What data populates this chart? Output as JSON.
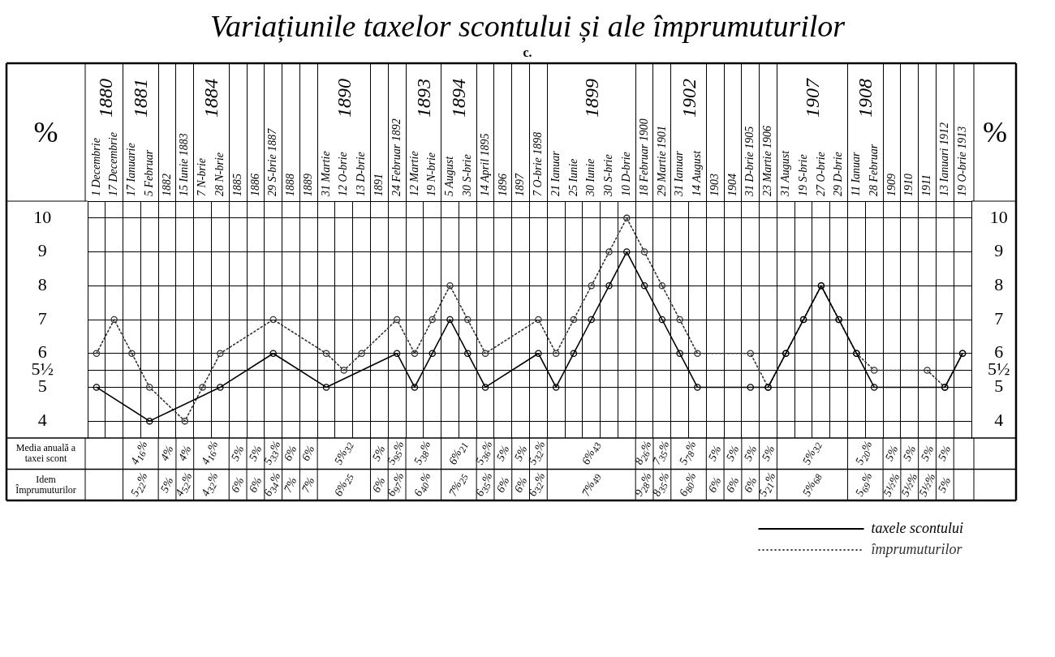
{
  "chart_data": {
    "type": "line",
    "title": "Variațiunile taxelor scontului și ale împrumuturilor",
    "subtitle": "c.",
    "ylabel": "%",
    "y2label": "%",
    "categories": [
      "1 Decembrie",
      "17 Decembrie",
      "17 Ianuarie",
      "5 Februar",
      "1882",
      "15 Iunie 1883",
      "7 N-brie",
      "28 N-brie",
      "1885",
      "1886",
      "29 S-brie 1887",
      "1888",
      "1889",
      "31 Martie",
      "12 O-brie",
      "13 D-brie",
      "1891",
      "24 Februar 1892",
      "12 Martie",
      "19 N-brie",
      "5 August",
      "30 S-brie",
      "14 April 1895",
      "1896",
      "1897",
      "7 O-brie 1898",
      "21 Ianuar",
      "25 Iunie",
      "30 Iunie",
      "30 S-brie",
      "10 D-brie",
      "18 Februar 1900",
      "29 Martie 1901",
      "31 Ianuar",
      "14 August",
      "1903",
      "1904",
      "31 D-brie 1905",
      "23 Martie 1906",
      "31 August",
      "19 S-brie",
      "27 O-brie",
      "29 D-brie",
      "11 Ianuar",
      "28 Februar",
      "1909",
      "1910",
      "1911",
      "13 Ianuari 1912",
      "19 O-brie 1913"
    ],
    "series": [
      {
        "name": "taxele scontului",
        "color": "#000000",
        "line_style": "solid",
        "values": [
          5,
          null,
          null,
          4,
          null,
          null,
          null,
          5,
          null,
          null,
          6,
          null,
          null,
          5,
          null,
          null,
          null,
          6,
          5,
          6,
          7,
          6,
          5,
          null,
          null,
          6,
          5,
          6,
          7,
          8,
          9,
          8,
          7,
          6,
          5,
          null,
          null,
          5,
          5,
          6,
          7,
          8,
          7,
          6,
          5,
          null,
          null,
          null,
          5,
          6
        ]
      },
      {
        "name": "împrumuturilor",
        "color": "#333333",
        "line_style": "dotted",
        "values": [
          6,
          7,
          6,
          5,
          null,
          4,
          5,
          6,
          null,
          null,
          7,
          null,
          null,
          6,
          5.5,
          6,
          null,
          7,
          6,
          7,
          8,
          7,
          6,
          null,
          null,
          7,
          6,
          7,
          8,
          9,
          10,
          9,
          8,
          7,
          6,
          null,
          null,
          6,
          5,
          6,
          7,
          8,
          7,
          6,
          5.5,
          null,
          null,
          5.5,
          5,
          6
        ]
      }
    ],
    "ylim": [
      3.5,
      10.5
    ],
    "yticks": [
      4,
      5,
      {
        "value": 5.5,
        "label": "5½"
      },
      6,
      7,
      8,
      9,
      10
    ],
    "y2lim": [
      3.5,
      10.5
    ],
    "y2ticks": [
      4,
      5,
      {
        "value": 5.5,
        "label": "5½"
      },
      6,
      7,
      8,
      9,
      10
    ],
    "grid": true,
    "legend": "bottom right",
    "marker": "circle",
    "annotations": [
      "1880",
      "1881",
      "1884",
      "1890",
      "1893",
      "1894",
      "1899",
      "1902",
      "1907",
      "1908",
      "Media anuală a taxei scont",
      "4$_{16}$%",
      "4%",
      "4%",
      "4$_{16}$%",
      "5%",
      "5%",
      "5$_{33}$%",
      "6%",
      "6%",
      "5%$_{32}$",
      "5%",
      "5$_{95}$%",
      "5$_{38}$%",
      "6%$_{21}$",
      "5$_{36}$%",
      "5%",
      "5%",
      "5$_{32}$%",
      "6%$_{43}$",
      "8$_{26}$%",
      "7$_{35}$%",
      "5$_{78}$%",
      "5%",
      "5%",
      "5%",
      "5%",
      "5%$_{32}$",
      "5$_{20}$%",
      "5%",
      "5%",
      "5%",
      "5%",
      "Idem Împrumuturilor",
      "5$_{22}$%",
      "5%",
      "4$_{52}$%",
      "4$_{32}$%",
      "6%",
      "6%",
      "6$_{34}$%",
      "7%",
      "7%",
      "6%$_{25}$",
      "6%",
      "6$_{97}$%",
      "6$_{40}$%",
      "7%$_{25}$",
      "6$_{35}$%",
      "6%",
      "6%",
      "6$_{32}$%",
      "7%$_{49}$",
      "9$_{28}$%",
      "8$_{35}$%",
      "6$_{80}$%",
      "6%",
      "6%",
      "6%",
      "5$_{21}$%",
      "5%$_{68}$",
      "5$_{69}$%",
      "5½%",
      "5½%",
      "5½%",
      "5%"
    ]
  }
}
